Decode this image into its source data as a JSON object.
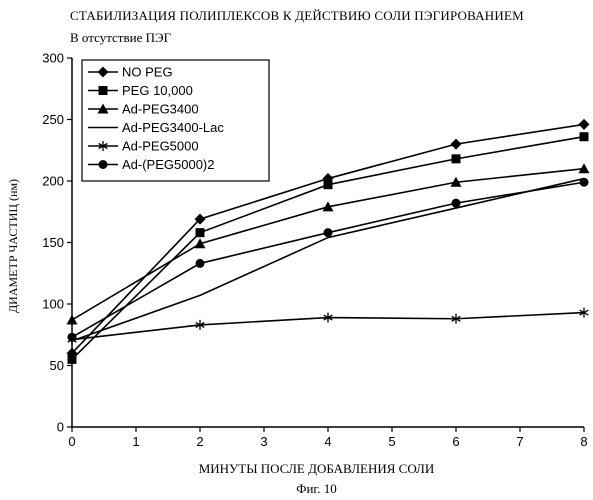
{
  "figure": {
    "title": "СТАБИЛИЗАЦИЯ ПОЛИПЛЕКСОВ К ДЕЙСТВИЮ СОЛИ ПЭГИРОВАНИЕМ",
    "subtitle": "В отсутствие ПЭГ",
    "caption": "Фиг. 10"
  },
  "chart_data": {
    "type": "line",
    "title": "СТАБИЛИЗАЦИЯ ПОЛИПЛЕКСОВ К ДЕЙСТВИЮ СОЛИ ПЭГИРОВАНИЕМ",
    "xlabel": "МИНУТЫ ПОСЛЕ ДОБАВЛЕНИЯ СОЛИ",
    "ylabel": "ДИАМЕТР ЧАСТИЦ (нм)",
    "xlim": [
      0,
      8
    ],
    "ylim": [
      0,
      300
    ],
    "xticks": [
      "0",
      "1",
      "2",
      "3",
      "4",
      "5",
      "6",
      "7",
      "8"
    ],
    "yticks": [
      "0",
      "50",
      "100",
      "150",
      "200",
      "250",
      "300"
    ],
    "grid": false,
    "legend_position": "top-left",
    "x": [
      0,
      2,
      4,
      6,
      8
    ],
    "series": [
      {
        "name": "NO PEG",
        "marker": "diamond",
        "values": [
          60,
          169,
          202,
          230,
          246
        ]
      },
      {
        "name": "PEG 10,000",
        "marker": "square",
        "values": [
          55,
          158,
          197,
          218,
          236
        ]
      },
      {
        "name": "Ad-PEG3400",
        "marker": "triangle",
        "values": [
          87,
          149,
          179,
          199,
          210
        ]
      },
      {
        "name": "Ad-PEG3400-Lac",
        "marker": "none",
        "values": [
          70,
          107,
          154,
          178,
          202
        ]
      },
      {
        "name": "Ad-PEG5000",
        "marker": "asterisk",
        "values": [
          71,
          83,
          89,
          88,
          93
        ]
      },
      {
        "name": "Ad-(PEG5000)2",
        "marker": "circle",
        "values": [
          73,
          133,
          158,
          182,
          199
        ]
      }
    ]
  }
}
